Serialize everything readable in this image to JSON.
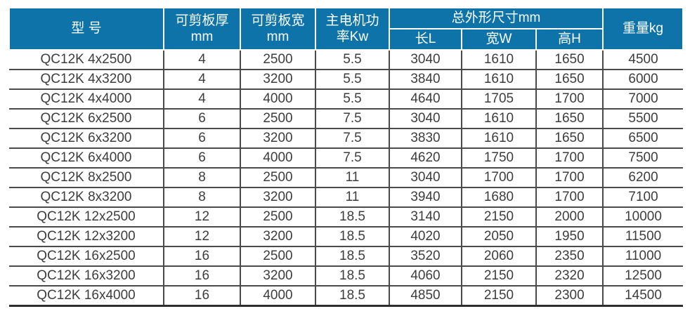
{
  "chart_data": {
    "type": "table",
    "title": "",
    "columns": [
      "型 号",
      "可剪板厚 mm",
      "可剪板宽 mm",
      "主电机功率Kw",
      "总外形尺寸mm 长L",
      "总外形尺寸mm 宽W",
      "总外形尺寸mm 高H",
      "重量kg"
    ],
    "rows": [
      [
        "QC12K 4x2500",
        "4",
        "2500",
        "5.5",
        "3040",
        "1610",
        "1650",
        "4500"
      ],
      [
        "QC12K 4x3200",
        "4",
        "3200",
        "5.5",
        "3840",
        "1610",
        "1650",
        "6000"
      ],
      [
        "QC12K 4x4000",
        "4",
        "4000",
        "5.5",
        "4640",
        "1705",
        "1700",
        "7000"
      ],
      [
        "QC12K 6x2500",
        "6",
        "2500",
        "7.5",
        "3040",
        "1610",
        "1650",
        "5500"
      ],
      [
        "QC12K 6x3200",
        "6",
        "3200",
        "7.5",
        "3830",
        "1610",
        "1650",
        "6500"
      ],
      [
        "QC12K 6x4000",
        "6",
        "4000",
        "7.5",
        "4620",
        "1750",
        "1700",
        "7500"
      ],
      [
        "QC12K 8x2500",
        "8",
        "2500",
        "11",
        "3040",
        "1700",
        "1700",
        "6200"
      ],
      [
        "QC12K 8x3200",
        "8",
        "3200",
        "11",
        "3940",
        "1680",
        "1700",
        "7100"
      ],
      [
        "QC12K 12x2500",
        "12",
        "2500",
        "18.5",
        "3140",
        "2150",
        "2000",
        "10000"
      ],
      [
        "QC12K 12x3200",
        "12",
        "3200",
        "18.5",
        "4020",
        "2050",
        "1950",
        "11500"
      ],
      [
        "QC12K 16x2500",
        "16",
        "2500",
        "18.5",
        "3520",
        "2060",
        "2350",
        "11000"
      ],
      [
        "QC12K 16x3200",
        "16",
        "3200",
        "18.5",
        "4060",
        "2150",
        "2320",
        "12500"
      ],
      [
        "QC12K 16x4000",
        "16",
        "4000",
        "18.5",
        "4850",
        "2150",
        "2300",
        "14500"
      ]
    ]
  },
  "header": {
    "model": "型 号",
    "thickness_line1": "可剪板厚",
    "thickness_line2": "mm",
    "width_line1": "可剪板宽",
    "width_line2": "mm",
    "power_line1": "主电机功",
    "power_line2": "率Kw",
    "dimensions_group": "总外形尺寸mm",
    "length": "长L",
    "width_w": "宽W",
    "height": "高H",
    "weight": "重量kg"
  },
  "colors": {
    "header_bg": "#0d73a9",
    "header_text": "#ffffff",
    "body_text": "#3d3d3d",
    "grid_line": "#4a4a4a"
  }
}
